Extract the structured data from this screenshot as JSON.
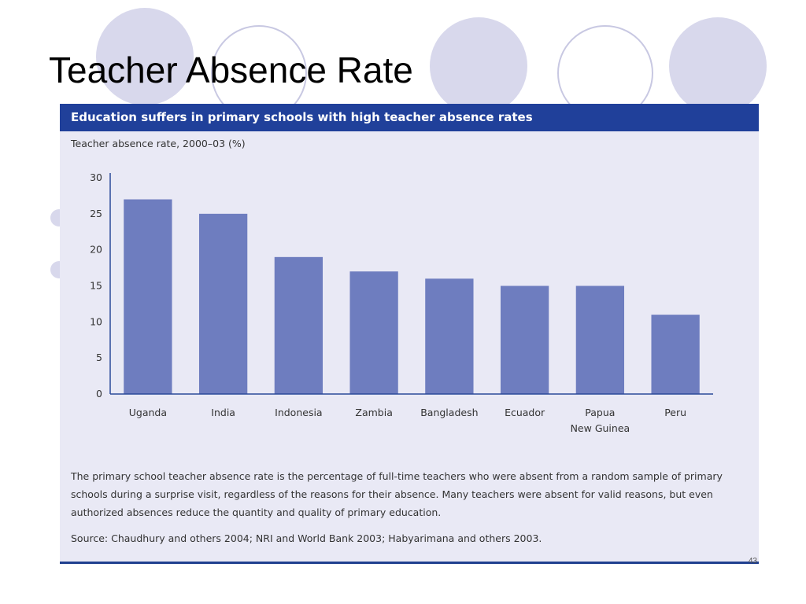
{
  "slide": {
    "title": "Teacher Absence Rate",
    "page_number": "43"
  },
  "figure": {
    "header": "Education suffers in primary schools with high teacher absence rates",
    "caption": "The primary school teacher absence rate is the percentage of full-time teachers who were absent from a random sample of primary schools during a surprise visit, regardless of the reasons for their absence. Many teachers were absent for valid reasons, but even authorized absences reduce the quantity and quality of primary education.",
    "source": "Source: Chaudhury and others 2004; NRI and World Bank 2003; Habyarimana and others 2003."
  },
  "colors": {
    "header_bg": "#20409a",
    "panel_bg": "#e9e9f5",
    "bar": "#6e7dbf",
    "axis": "#2b4a9a"
  },
  "chart_data": {
    "type": "bar",
    "title": "Education suffers in primary schools with high teacher absence rates",
    "ylabel": "Teacher absence rate, 2000–03 (%)",
    "xlabel": "",
    "categories": [
      "Uganda",
      "India",
      "Indonesia",
      "Zambia",
      "Bangladesh",
      "Ecuador",
      "Papua New Guinea",
      "Peru"
    ],
    "category_label_lines": [
      [
        "Uganda"
      ],
      [
        "India"
      ],
      [
        "Indonesia"
      ],
      [
        "Zambia"
      ],
      [
        "Bangladesh"
      ],
      [
        "Ecuador"
      ],
      [
        "Papua",
        "New Guinea"
      ],
      [
        "Peru"
      ]
    ],
    "values": [
      27,
      25,
      19,
      17,
      16,
      15,
      15,
      11
    ],
    "ylim": [
      0,
      30
    ],
    "yticks": [
      0,
      5,
      10,
      15,
      20,
      25,
      30
    ],
    "grid": false,
    "legend": "none"
  }
}
